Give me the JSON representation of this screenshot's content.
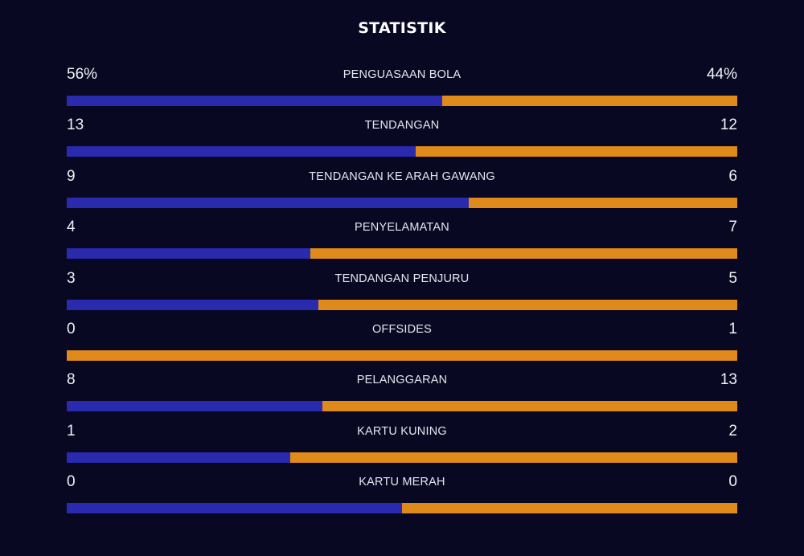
{
  "header": {
    "title": "STATISTIK"
  },
  "colors": {
    "background": "#080822",
    "home": "#2a2aae",
    "away": "#e08a1c"
  },
  "stats": [
    {
      "label": "PENGUASAAN BOLA",
      "home_display": "56%",
      "away_display": "44%",
      "home": 56,
      "away": 44
    },
    {
      "label": "TENDANGAN",
      "home_display": "13",
      "away_display": "12",
      "home": 13,
      "away": 12
    },
    {
      "label": "TENDANGAN KE ARAH GAWANG",
      "home_display": "9",
      "away_display": "6",
      "home": 9,
      "away": 6
    },
    {
      "label": "PENYELAMATAN",
      "home_display": "4",
      "away_display": "7",
      "home": 4,
      "away": 7
    },
    {
      "label": "TENDANGAN PENJURU",
      "home_display": "3",
      "away_display": "5",
      "home": 3,
      "away": 5
    },
    {
      "label": "OFFSIDES",
      "home_display": "0",
      "away_display": "1",
      "home": 0,
      "away": 1
    },
    {
      "label": "PELANGGARAN",
      "home_display": "8",
      "away_display": "13",
      "home": 8,
      "away": 13
    },
    {
      "label": "KARTU KUNING",
      "home_display": "1",
      "away_display": "2",
      "home": 1,
      "away": 2
    },
    {
      "label": "KARTU MERAH",
      "home_display": "0",
      "away_display": "0",
      "home": 0,
      "away": 0
    }
  ]
}
